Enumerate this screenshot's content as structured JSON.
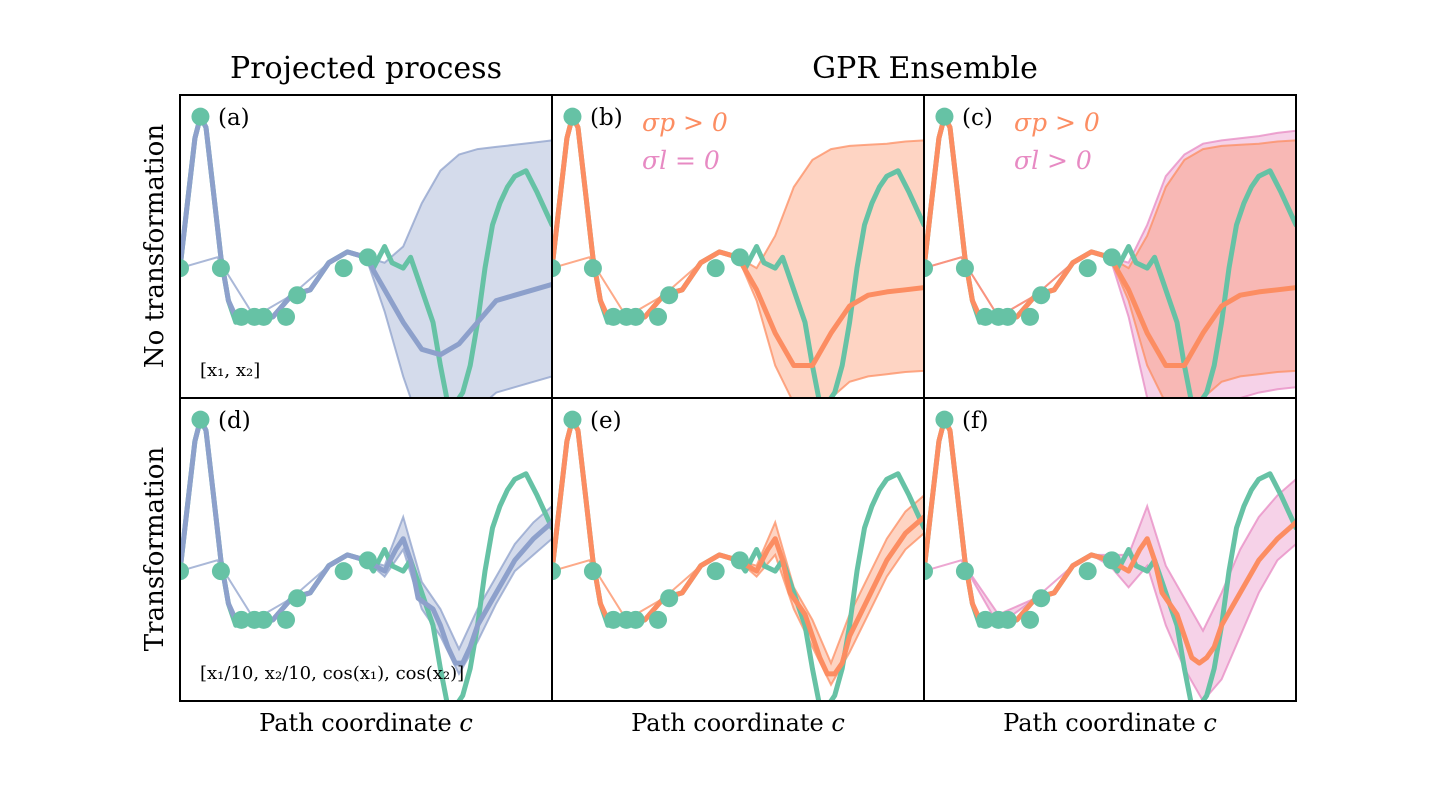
{
  "figure": {
    "column_titles": [
      "Projected process",
      "GPR Ensemble"
    ],
    "row_labels": [
      "No transformation",
      "Transformation"
    ],
    "xlabel": "Path coordinate c",
    "xlabel_text": "Path coordinate ",
    "xlabel_var": "c",
    "colors": {
      "true": "#66c2a5",
      "projected": "#8da0cb",
      "ensemble": "#fc8d62",
      "band_pink": "#e78ac3"
    }
  },
  "chart_data": [
    {
      "type": "line",
      "panel": "(a)",
      "row": "No transformation",
      "column": "Projected process",
      "features": "[x1, x2]",
      "features_display": "[x₁, x₂]",
      "xlabel": "",
      "ylabel": "",
      "xlim": [
        0,
        1
      ],
      "ylim": [
        -1.2,
        1.6
      ],
      "series": [
        {
          "name": "true",
          "style": "line",
          "color": "#66c2a5",
          "x": [
            0,
            0.02,
            0.04,
            0.055,
            0.07,
            0.09,
            0.11,
            0.13,
            0.15,
            0.17,
            0.2,
            0.25,
            0.3,
            0.35,
            0.4,
            0.45,
            0.5,
            0.52,
            0.55,
            0.57,
            0.6,
            0.62,
            0.64,
            0.66,
            0.68,
            0.7,
            0.72,
            0.74,
            0.76,
            0.78,
            0.8,
            0.82,
            0.84,
            0.86,
            0.88,
            0.9,
            0.93,
            0.96,
            1.0
          ],
          "y": [
            0,
            0.6,
            1.2,
            1.4,
            1.3,
            0.7,
            0.1,
            -0.3,
            -0.5,
            -0.4,
            -0.5,
            -0.45,
            -0.25,
            -0.2,
            0.05,
            0.15,
            0.1,
            0.0,
            0.2,
            0.05,
            0.0,
            0.1,
            -0.1,
            -0.3,
            -0.5,
            -0.9,
            -1.25,
            -1.25,
            -1.15,
            -0.9,
            -0.5,
            0.0,
            0.4,
            0.6,
            0.75,
            0.85,
            0.9,
            0.7,
            0.4
          ]
        },
        {
          "name": "mean",
          "style": "line",
          "color": "#8da0cb",
          "x": [
            0,
            0.02,
            0.04,
            0.055,
            0.07,
            0.09,
            0.11,
            0.13,
            0.15,
            0.17,
            0.2,
            0.25,
            0.3,
            0.35,
            0.4,
            0.45,
            0.5,
            0.55,
            0.6,
            0.65,
            0.7,
            0.75,
            0.8,
            0.85,
            0.9,
            0.95,
            1.0
          ],
          "y": [
            0,
            0.6,
            1.2,
            1.4,
            1.3,
            0.7,
            0.1,
            -0.3,
            -0.45,
            -0.45,
            -0.45,
            -0.45,
            -0.25,
            -0.2,
            0.05,
            0.15,
            0.1,
            -0.2,
            -0.5,
            -0.75,
            -0.8,
            -0.7,
            -0.5,
            -0.3,
            -0.25,
            -0.2,
            -0.15
          ]
        },
        {
          "name": "band",
          "style": "band",
          "color": "#8da0cb",
          "x": [
            0,
            0.1,
            0.2,
            0.3,
            0.4,
            0.45,
            0.5,
            0.55,
            0.6,
            0.65,
            0.7,
            0.75,
            0.8,
            0.85,
            0.9,
            0.95,
            1.0
          ],
          "y_lower": [
            0,
            0.1,
            -0.45,
            -0.25,
            0.05,
            0.15,
            0.1,
            -0.4,
            -1.0,
            -1.5,
            -1.65,
            -1.5,
            -1.3,
            -1.15,
            -1.1,
            -1.05,
            -1.0
          ],
          "y_upper": [
            0,
            0.1,
            -0.45,
            -0.25,
            0.05,
            0.15,
            0.1,
            0.05,
            0.2,
            0.6,
            0.9,
            1.05,
            1.1,
            1.12,
            1.14,
            1.16,
            1.18
          ]
        },
        {
          "name": "training points",
          "style": "points",
          "color": "#66c2a5",
          "x": [
            0.0,
            0.055,
            0.11,
            0.165,
            0.2,
            0.225,
            0.285,
            0.315,
            0.44,
            0.505
          ],
          "y": [
            0.0,
            1.4,
            0.0,
            -0.45,
            -0.45,
            -0.45,
            -0.45,
            -0.25,
            0.0,
            0.1
          ]
        }
      ]
    },
    {
      "type": "line",
      "panel": "(b)",
      "row": "No transformation",
      "column": "GPR Ensemble",
      "annotations": [
        {
          "text": "σ_p > 0",
          "display": "σp > 0",
          "color": "#fc8d62"
        },
        {
          "text": "σ_l = 0",
          "display": "σl = 0",
          "color": "#e78ac3"
        }
      ],
      "xlim": [
        0,
        1
      ],
      "ylim": [
        -1.2,
        1.6
      ],
      "series": [
        {
          "name": "true",
          "style": "line",
          "color": "#66c2a5",
          "same_as": "(a)"
        },
        {
          "name": "mean",
          "style": "line",
          "color": "#fc8d62",
          "x": [
            0,
            0.02,
            0.04,
            0.055,
            0.07,
            0.09,
            0.11,
            0.13,
            0.15,
            0.17,
            0.2,
            0.25,
            0.3,
            0.35,
            0.4,
            0.45,
            0.5,
            0.55,
            0.6,
            0.65,
            0.7,
            0.75,
            0.8,
            0.85,
            0.9,
            0.95,
            1.0
          ],
          "y": [
            0,
            0.6,
            1.2,
            1.4,
            1.3,
            0.7,
            0.1,
            -0.3,
            -0.45,
            -0.45,
            -0.45,
            -0.45,
            -0.25,
            -0.2,
            0.05,
            0.15,
            0.1,
            -0.2,
            -0.6,
            -0.9,
            -0.9,
            -0.6,
            -0.35,
            -0.25,
            -0.22,
            -0.2,
            -0.18
          ]
        },
        {
          "name": "band",
          "style": "band",
          "color": "#fc8d62",
          "x": [
            0,
            0.1,
            0.2,
            0.3,
            0.4,
            0.45,
            0.5,
            0.55,
            0.6,
            0.65,
            0.7,
            0.75,
            0.8,
            0.85,
            0.9,
            0.95,
            1.0
          ],
          "y_lower": [
            0,
            0.1,
            -0.45,
            -0.25,
            0.05,
            0.15,
            0.1,
            -0.3,
            -0.9,
            -1.25,
            -1.35,
            -1.2,
            -1.05,
            -1.0,
            -0.98,
            -0.96,
            -0.95
          ],
          "y_upper": [
            0,
            0.1,
            -0.45,
            -0.25,
            0.05,
            0.15,
            0.1,
            0.0,
            0.3,
            0.75,
            1.0,
            1.1,
            1.13,
            1.14,
            1.15,
            1.17,
            1.18
          ]
        },
        {
          "name": "training points",
          "style": "points",
          "color": "#66c2a5",
          "same_as": "(a)"
        }
      ]
    },
    {
      "type": "line",
      "panel": "(c)",
      "row": "No transformation",
      "column": "GPR Ensemble",
      "annotations": [
        {
          "text": "σ_p > 0",
          "display": "σp > 0",
          "color": "#fc8d62"
        },
        {
          "text": "σ_l > 0",
          "display": "σl > 0",
          "color": "#e78ac3"
        }
      ],
      "xlim": [
        0,
        1
      ],
      "ylim": [
        -1.2,
        1.6
      ],
      "series": [
        {
          "name": "true",
          "style": "line",
          "color": "#66c2a5",
          "same_as": "(a)"
        },
        {
          "name": "mean",
          "style": "line",
          "color": "#fc8d62",
          "same_as": "(b)"
        },
        {
          "name": "band_outer",
          "style": "band",
          "color": "#e78ac3",
          "x": [
            0,
            0.1,
            0.2,
            0.3,
            0.4,
            0.45,
            0.5,
            0.55,
            0.6,
            0.65,
            0.7,
            0.75,
            0.8,
            0.85,
            0.9,
            0.95,
            1.0
          ],
          "y_lower": [
            0,
            0.1,
            -0.45,
            -0.25,
            0.05,
            0.15,
            0.1,
            -0.45,
            -1.2,
            -1.6,
            -1.7,
            -1.5,
            -1.3,
            -1.2,
            -1.15,
            -1.12,
            -1.1
          ],
          "y_upper": [
            0,
            0.1,
            -0.45,
            -0.25,
            0.05,
            0.15,
            0.1,
            0.05,
            0.4,
            0.85,
            1.05,
            1.15,
            1.18,
            1.2,
            1.22,
            1.25,
            1.27
          ]
        },
        {
          "name": "band",
          "style": "band",
          "color": "#fc8d62",
          "same_as": "(b)"
        },
        {
          "name": "training points",
          "style": "points",
          "color": "#66c2a5",
          "same_as": "(a)"
        }
      ]
    },
    {
      "type": "line",
      "panel": "(d)",
      "row": "Transformation",
      "column": "Projected process",
      "features": "[1/10 x1, 1/10 x2, cos(x1), cos(x2)]",
      "features_display": "[x₁/10, x₂/10, cos(x₁), cos(x₂)]",
      "xlim": [
        0,
        1
      ],
      "ylim": [
        -1.2,
        1.6
      ],
      "series": [
        {
          "name": "true",
          "style": "line",
          "color": "#66c2a5",
          "same_as": "(a)"
        },
        {
          "name": "mean",
          "style": "line",
          "color": "#8da0cb",
          "x": [
            0,
            0.02,
            0.04,
            0.055,
            0.07,
            0.09,
            0.11,
            0.13,
            0.15,
            0.17,
            0.2,
            0.25,
            0.3,
            0.35,
            0.4,
            0.45,
            0.5,
            0.55,
            0.58,
            0.6,
            0.62,
            0.64,
            0.66,
            0.68,
            0.7,
            0.72,
            0.74,
            0.76,
            0.78,
            0.8,
            0.85,
            0.9,
            0.95,
            1.0
          ],
          "y": [
            0,
            0.6,
            1.2,
            1.4,
            1.3,
            0.7,
            0.1,
            -0.3,
            -0.45,
            -0.45,
            -0.45,
            -0.45,
            -0.25,
            -0.2,
            0.05,
            0.15,
            0.1,
            0.0,
            0.2,
            0.3,
            0.1,
            -0.25,
            -0.3,
            -0.35,
            -0.5,
            -0.7,
            -0.85,
            -0.85,
            -0.7,
            -0.5,
            -0.2,
            0.1,
            0.3,
            0.45
          ]
        },
        {
          "name": "band",
          "style": "band",
          "color": "#8da0cb",
          "x": [
            0,
            0.1,
            0.2,
            0.3,
            0.4,
            0.45,
            0.5,
            0.55,
            0.6,
            0.65,
            0.7,
            0.75,
            0.8,
            0.85,
            0.9,
            0.95,
            1.0
          ],
          "y_lower": [
            0,
            0.1,
            -0.45,
            -0.25,
            0.05,
            0.15,
            0.1,
            -0.05,
            0.2,
            -0.35,
            -0.6,
            -0.95,
            -0.65,
            -0.3,
            0.0,
            0.15,
            0.3
          ],
          "y_upper": [
            0,
            0.1,
            -0.45,
            -0.25,
            0.05,
            0.15,
            0.1,
            0.05,
            0.5,
            -0.1,
            -0.35,
            -0.72,
            -0.35,
            -0.05,
            0.25,
            0.45,
            0.6
          ]
        },
        {
          "name": "training points",
          "style": "points",
          "color": "#66c2a5",
          "same_as": "(a)"
        }
      ]
    },
    {
      "type": "line",
      "panel": "(e)",
      "row": "Transformation",
      "column": "GPR Ensemble",
      "xlim": [
        0,
        1
      ],
      "ylim": [
        -1.2,
        1.6
      ],
      "series": [
        {
          "name": "true",
          "style": "line",
          "color": "#66c2a5",
          "same_as": "(a)"
        },
        {
          "name": "mean",
          "style": "line",
          "color": "#fc8d62",
          "x": [
            0,
            0.02,
            0.04,
            0.055,
            0.07,
            0.09,
            0.11,
            0.13,
            0.15,
            0.17,
            0.2,
            0.25,
            0.3,
            0.35,
            0.4,
            0.45,
            0.5,
            0.55,
            0.58,
            0.6,
            0.62,
            0.64,
            0.66,
            0.68,
            0.7,
            0.72,
            0.74,
            0.76,
            0.78,
            0.8,
            0.85,
            0.9,
            0.95,
            1.0
          ],
          "y": [
            0,
            0.6,
            1.2,
            1.4,
            1.3,
            0.7,
            0.1,
            -0.3,
            -0.45,
            -0.45,
            -0.45,
            -0.45,
            -0.25,
            -0.2,
            0.05,
            0.15,
            0.1,
            0.0,
            0.2,
            0.3,
            0.1,
            -0.2,
            -0.3,
            -0.4,
            -0.6,
            -0.8,
            -0.95,
            -0.95,
            -0.85,
            -0.6,
            -0.25,
            0.1,
            0.35,
            0.5
          ]
        },
        {
          "name": "band",
          "style": "band",
          "color": "#fc8d62",
          "x": [
            0,
            0.1,
            0.2,
            0.3,
            0.4,
            0.45,
            0.5,
            0.55,
            0.6,
            0.65,
            0.7,
            0.75,
            0.8,
            0.85,
            0.9,
            0.95,
            1.0
          ],
          "y_lower": [
            0,
            0.1,
            -0.45,
            -0.25,
            0.05,
            0.15,
            0.1,
            -0.05,
            0.15,
            -0.35,
            -0.7,
            -1.05,
            -0.75,
            -0.4,
            -0.05,
            0.2,
            0.35
          ],
          "y_upper": [
            0,
            0.1,
            -0.45,
            -0.25,
            0.05,
            0.15,
            0.1,
            0.05,
            0.45,
            -0.15,
            -0.45,
            -0.85,
            -0.4,
            -0.05,
            0.3,
            0.55,
            0.7
          ]
        },
        {
          "name": "training points",
          "style": "points",
          "color": "#66c2a5",
          "same_as": "(a)"
        }
      ]
    },
    {
      "type": "line",
      "panel": "(f)",
      "row": "Transformation",
      "column": "GPR Ensemble",
      "xlim": [
        0,
        1
      ],
      "ylim": [
        -1.2,
        1.6
      ],
      "series": [
        {
          "name": "true",
          "style": "line",
          "color": "#66c2a5",
          "same_as": "(a)"
        },
        {
          "name": "mean",
          "style": "line",
          "color": "#fc8d62",
          "x": [
            0,
            0.02,
            0.04,
            0.055,
            0.07,
            0.09,
            0.11,
            0.13,
            0.15,
            0.17,
            0.2,
            0.25,
            0.3,
            0.35,
            0.4,
            0.45,
            0.5,
            0.55,
            0.58,
            0.6,
            0.62,
            0.64,
            0.66,
            0.68,
            0.7,
            0.72,
            0.74,
            0.76,
            0.78,
            0.8,
            0.85,
            0.9,
            0.95,
            1.0
          ],
          "y": [
            0,
            0.6,
            1.2,
            1.4,
            1.3,
            0.7,
            0.1,
            -0.3,
            -0.45,
            -0.42,
            -0.45,
            -0.45,
            -0.25,
            -0.2,
            0.05,
            0.15,
            0.1,
            0.0,
            0.2,
            0.3,
            0.1,
            -0.2,
            -0.3,
            -0.4,
            -0.6,
            -0.8,
            -0.85,
            -0.8,
            -0.7,
            -0.5,
            -0.2,
            0.1,
            0.3,
            0.45
          ]
        },
        {
          "name": "band",
          "style": "band",
          "color": "#e78ac3",
          "x": [
            0,
            0.1,
            0.2,
            0.3,
            0.4,
            0.45,
            0.5,
            0.55,
            0.6,
            0.65,
            0.7,
            0.75,
            0.8,
            0.85,
            0.9,
            0.95,
            1.0
          ],
          "y_lower": [
            0,
            0.1,
            -0.5,
            -0.25,
            0.05,
            0.15,
            0.05,
            -0.15,
            0.05,
            -0.5,
            -0.9,
            -1.2,
            -1.0,
            -0.6,
            -0.2,
            0.1,
            0.25
          ],
          "y_upper": [
            0,
            0.1,
            -0.4,
            -0.25,
            0.05,
            0.15,
            0.15,
            0.15,
            0.6,
            0.05,
            -0.25,
            -0.55,
            -0.2,
            0.2,
            0.5,
            0.7,
            0.85
          ]
        },
        {
          "name": "training points",
          "style": "points",
          "color": "#66c2a5",
          "same_as": "(a)"
        }
      ]
    }
  ]
}
